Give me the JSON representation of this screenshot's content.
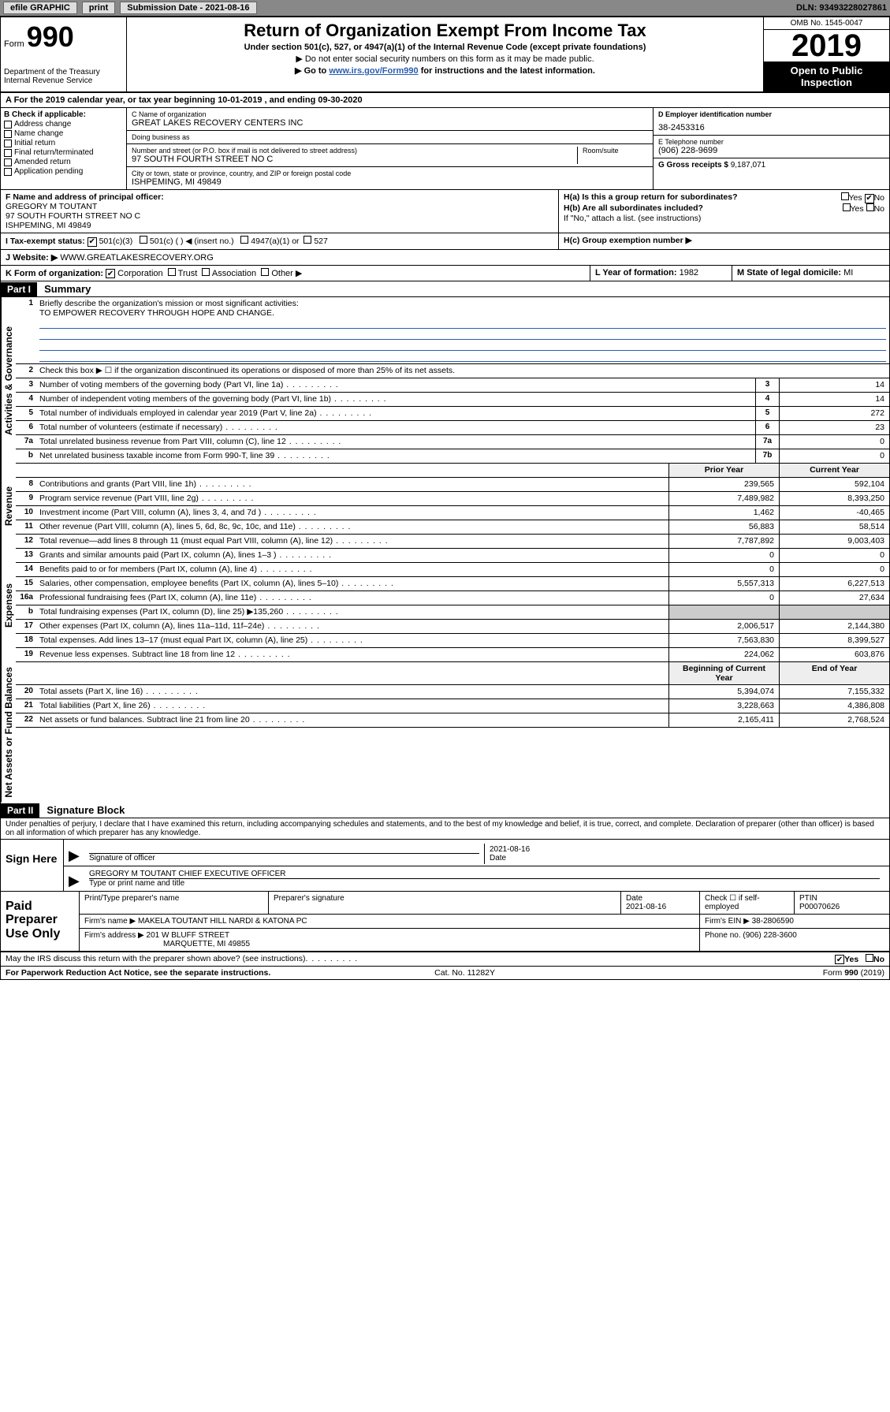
{
  "colors": {
    "link": "#2a5db0",
    "toolbar_bg": "#888888",
    "btn_bg": "#dddddd",
    "black": "#000000",
    "shaded": "#cccccc"
  },
  "toolbar": {
    "efile_label": "efile GRAPHIC",
    "print_label": "print",
    "sub_date_label": "Submission Date - 2021-08-16",
    "dln_label": "DLN: 93493228027861"
  },
  "header": {
    "form_prefix": "Form",
    "form_number": "990",
    "dept": "Department of the Treasury\nInternal Revenue Service",
    "title": "Return of Organization Exempt From Income Tax",
    "subtitle": "Under section 501(c), 527, or 4947(a)(1) of the Internal Revenue Code (except private foundations)",
    "note1": "▶ Do not enter social security numbers on this form as it may be made public.",
    "note2_pre": "▶ Go to ",
    "note2_link": "www.irs.gov/Form990",
    "note2_post": " for instructions and the latest information.",
    "omb": "OMB No. 1545-0047",
    "year": "2019",
    "open_public": "Open to Public Inspection"
  },
  "a_line": "A For the 2019 calendar year, or tax year beginning 10-01-2019   , and ending 09-30-2020",
  "section_b": {
    "heading": "B Check if applicable:",
    "opts": [
      "Address change",
      "Name change",
      "Initial return",
      "Final return/terminated",
      "Amended return",
      "Application pending"
    ]
  },
  "section_c": {
    "name_label": "C Name of organization",
    "name": "GREAT LAKES RECOVERY CENTERS INC",
    "dba_label": "Doing business as",
    "dba": "",
    "addr_label": "Number and street (or P.O. box if mail is not delivered to street address)",
    "room_label": "Room/suite",
    "addr": "97 SOUTH FOURTH STREET NO C",
    "city_label": "City or town, state or province, country, and ZIP or foreign postal code",
    "city": "ISHPEMING, MI  49849"
  },
  "section_d": {
    "label": "D Employer identification number",
    "ein": "38-2453316"
  },
  "section_e": {
    "label": "E Telephone number",
    "phone": "(906) 228-9699"
  },
  "section_g": {
    "label": "G Gross receipts $",
    "amount": "9,187,071"
  },
  "section_f": {
    "label": "F  Name and address of principal officer:",
    "name": "GREGORY M TOUTANT",
    "addr1": "97 SOUTH FOURTH STREET NO C",
    "addr2": "ISHPEMING, MI  49849"
  },
  "section_h": {
    "ha_label": "H(a)  Is this a group return for subordinates?",
    "ha_yes": "Yes",
    "ha_no": "No",
    "ha_answer": "No",
    "hb_label": "H(b)  Are all subordinates included?",
    "hb_yes": "Yes",
    "hb_no": "No",
    "hb_note": "If \"No,\" attach a list. (see instructions)",
    "hc_label": "H(c)  Group exemption number ▶"
  },
  "section_i": {
    "label": "I   Tax-exempt status:",
    "opts": [
      "501(c)(3)",
      "501(c) (  ) ◀ (insert no.)",
      "4947(a)(1) or",
      "527"
    ],
    "checked": "501(c)(3)"
  },
  "section_j": {
    "label": "J   Website: ▶",
    "url": "WWW.GREATLAKESRECOVERY.ORG"
  },
  "section_k": {
    "label": "K Form of organization:",
    "opts": [
      "Corporation",
      "Trust",
      "Association",
      "Other ▶"
    ],
    "checked": "Corporation"
  },
  "section_l": {
    "label": "L Year of formation:",
    "value": "1982"
  },
  "section_m": {
    "label": "M State of legal domicile:",
    "value": "MI"
  },
  "part1": {
    "bar": "Part I",
    "title": "Summary"
  },
  "summary": {
    "groups": [
      {
        "label": "Activities & Governance",
        "lines": [
          {
            "n": "1",
            "desc": "Briefly describe the organization's mission or most significant activities:",
            "mission": "TO EMPOWER RECOVERY THROUGH HOPE AND CHANGE."
          },
          {
            "n": "2",
            "desc": "Check this box ▶ ☐  if the organization discontinued its operations or disposed of more than 25% of its net assets."
          },
          {
            "n": "3",
            "desc": "Number of voting members of the governing body (Part VI, line 1a)",
            "box": "3",
            "val": "14"
          },
          {
            "n": "4",
            "desc": "Number of independent voting members of the governing body (Part VI, line 1b)",
            "box": "4",
            "val": "14"
          },
          {
            "n": "5",
            "desc": "Total number of individuals employed in calendar year 2019 (Part V, line 2a)",
            "box": "5",
            "val": "272"
          },
          {
            "n": "6",
            "desc": "Total number of volunteers (estimate if necessary)",
            "box": "6",
            "val": "23"
          },
          {
            "n": "7a",
            "desc": "Total unrelated business revenue from Part VIII, column (C), line 12",
            "box": "7a",
            "val": "0"
          },
          {
            "n": "b",
            "desc": "Net unrelated business taxable income from Form 990-T, line 39",
            "box": "7b",
            "val": "0"
          }
        ]
      },
      {
        "label": "Revenue",
        "header": {
          "prior": "Prior Year",
          "current": "Current Year"
        },
        "lines": [
          {
            "n": "8",
            "desc": "Contributions and grants (Part VIII, line 1h)",
            "prior": "239,565",
            "current": "592,104"
          },
          {
            "n": "9",
            "desc": "Program service revenue (Part VIII, line 2g)",
            "prior": "7,489,982",
            "current": "8,393,250"
          },
          {
            "n": "10",
            "desc": "Investment income (Part VIII, column (A), lines 3, 4, and 7d )",
            "prior": "1,462",
            "current": "-40,465"
          },
          {
            "n": "11",
            "desc": "Other revenue (Part VIII, column (A), lines 5, 6d, 8c, 9c, 10c, and 11e)",
            "prior": "56,883",
            "current": "58,514"
          },
          {
            "n": "12",
            "desc": "Total revenue—add lines 8 through 11 (must equal Part VIII, column (A), line 12)",
            "prior": "7,787,892",
            "current": "9,003,403"
          }
        ]
      },
      {
        "label": "Expenses",
        "lines": [
          {
            "n": "13",
            "desc": "Grants and similar amounts paid (Part IX, column (A), lines 1–3 )",
            "prior": "0",
            "current": "0"
          },
          {
            "n": "14",
            "desc": "Benefits paid to or for members (Part IX, column (A), line 4)",
            "prior": "0",
            "current": "0"
          },
          {
            "n": "15",
            "desc": "Salaries, other compensation, employee benefits (Part IX, column (A), lines 5–10)",
            "prior": "5,557,313",
            "current": "6,227,513"
          },
          {
            "n": "16a",
            "desc": "Professional fundraising fees (Part IX, column (A), line 11e)",
            "prior": "0",
            "current": "27,634"
          },
          {
            "n": "b",
            "desc": "Total fundraising expenses (Part IX, column (D), line 25) ▶135,260",
            "prior_shaded": true,
            "current_shaded": true
          },
          {
            "n": "17",
            "desc": "Other expenses (Part IX, column (A), lines 11a–11d, 11f–24e)",
            "prior": "2,006,517",
            "current": "2,144,380"
          },
          {
            "n": "18",
            "desc": "Total expenses. Add lines 13–17 (must equal Part IX, column (A), line 25)",
            "prior": "7,563,830",
            "current": "8,399,527"
          },
          {
            "n": "19",
            "desc": "Revenue less expenses. Subtract line 18 from line 12",
            "prior": "224,062",
            "current": "603,876"
          }
        ]
      },
      {
        "label": "Net Assets or Fund Balances",
        "header": {
          "prior": "Beginning of Current Year",
          "current": "End of Year"
        },
        "lines": [
          {
            "n": "20",
            "desc": "Total assets (Part X, line 16)",
            "prior": "5,394,074",
            "current": "7,155,332"
          },
          {
            "n": "21",
            "desc": "Total liabilities (Part X, line 26)",
            "prior": "3,228,663",
            "current": "4,386,808"
          },
          {
            "n": "22",
            "desc": "Net assets or fund balances. Subtract line 21 from line 20",
            "prior": "2,165,411",
            "current": "2,768,524"
          }
        ]
      }
    ]
  },
  "part2": {
    "bar": "Part II",
    "title": "Signature Block"
  },
  "perjury": "Under penalties of perjury, I declare that I have examined this return, including accompanying schedules and statements, and to the best of my knowledge and belief, it is true, correct, and complete. Declaration of preparer (other than officer) is based on all information of which preparer has any knowledge.",
  "sign": {
    "label": "Sign Here",
    "sig_label": "Signature of officer",
    "date_label": "Date",
    "date": "2021-08-16",
    "name_title": "GREGORY M TOUTANT  CHIEF EXECUTIVE OFFICER",
    "name_label": "Type or print name and title"
  },
  "preparer": {
    "label": "Paid Preparer Use Only",
    "cols": [
      "Print/Type preparer's name",
      "Preparer's signature",
      "Date",
      "",
      "PTIN"
    ],
    "date": "2021-08-16",
    "check_label": "Check ☐ if self-employed",
    "ptin": "P00070626",
    "firm_name_label": "Firm's name    ▶",
    "firm_name": "MAKELA TOUTANT HILL NARDI & KATONA PC",
    "firm_ein_label": "Firm's EIN ▶",
    "firm_ein": "38-2806590",
    "firm_addr_label": "Firm's address ▶",
    "firm_addr1": "201 W BLUFF STREET",
    "firm_addr2": "MARQUETTE, MI  49855",
    "phone_label": "Phone no.",
    "phone": "(906) 228-3600"
  },
  "discuss": {
    "q": "May the IRS discuss this return with the preparer shown above? (see instructions)",
    "yes": "Yes",
    "no": "No",
    "answer": "Yes"
  },
  "footer": {
    "pra": "For Paperwork Reduction Act Notice, see the separate instructions.",
    "cat": "Cat. No. 11282Y",
    "formref": "Form 990 (2019)"
  }
}
